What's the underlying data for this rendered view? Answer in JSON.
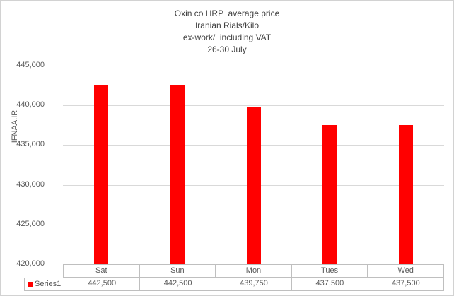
{
  "chart_data": {
    "type": "bar",
    "title_lines": [
      "Oxin co HRP  average price",
      "Iranian Rials/Kilo",
      "ex-work/  including VAT",
      "26-30 July"
    ],
    "ylabel": "IFNAA.IR",
    "categories": [
      "Sat",
      "Sun",
      "Mon",
      "Tues",
      "Wed"
    ],
    "series": [
      {
        "name": "Series1",
        "values": [
          442500,
          442500,
          439750,
          437500,
          437500
        ],
        "value_labels": [
          "442,500",
          "442,500",
          "439,750",
          "437,500",
          "437,500"
        ],
        "color": "#ff0000"
      }
    ],
    "ylim": [
      420000,
      445000
    ],
    "ytick_step": 5000,
    "ytick_labels": [
      "445,000",
      "440,000",
      "435,000",
      "430,000",
      "425,000",
      "420,000"
    ],
    "grid": true,
    "gridline_color": "#d9d9d9",
    "axis_text_color": "#595959",
    "title_color": "#3f3f3f",
    "table_border_color": "#bfbfbf",
    "legend_position": "bottom-table"
  }
}
